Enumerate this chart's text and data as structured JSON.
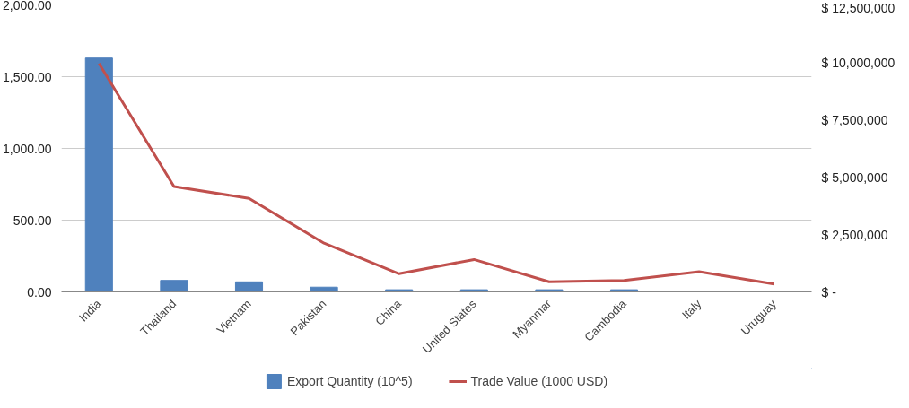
{
  "chart_data": {
    "type": "bar",
    "categories": [
      "India",
      "Thailand",
      "Vietnam",
      "Pakistan",
      "China",
      "United States",
      "Myanmar",
      "Cambodia",
      "Italy",
      "Uruguay"
    ],
    "series": [
      {
        "name": "Export Quantity (10^5)",
        "color": "#4f81bd",
        "values": [
          1630,
          80,
          70,
          33,
          15,
          15,
          15,
          15,
          0,
          0
        ]
      },
      {
        "name": "Trade Value (1000 USD)",
        "type": "line",
        "axis": "y2",
        "color": "#c0504d",
        "values": [
          9950000,
          4590000,
          4070000,
          2120000,
          790000,
          1410000,
          440000,
          500000,
          880000,
          340000
        ]
      }
    ],
    "ylim": [
      0,
      2000
    ],
    "yticks": [
      {
        "value": 0,
        "label": "0.00"
      },
      {
        "value": 500,
        "label": "500.00"
      },
      {
        "value": 1000,
        "label": "1,000.00"
      },
      {
        "value": 1500,
        "label": "1,500.00"
      },
      {
        "value": 2000,
        "label": "2,000.00"
      }
    ],
    "y2lim": [
      0,
      12500000
    ],
    "y2ticks": [
      {
        "value": 0,
        "label": "$ -"
      },
      {
        "value": 2500000,
        "label": "$ 2,500,000"
      },
      {
        "value": 5000000,
        "label": "$ 5,000,000"
      },
      {
        "value": 7500000,
        "label": "$ 7,500,000"
      },
      {
        "value": 10000000,
        "label": "$ 10,000,000"
      },
      {
        "value": 12500000,
        "label": "$ 12,500,000"
      }
    ],
    "grid": "y",
    "legend": "bottom",
    "marker": "none"
  }
}
